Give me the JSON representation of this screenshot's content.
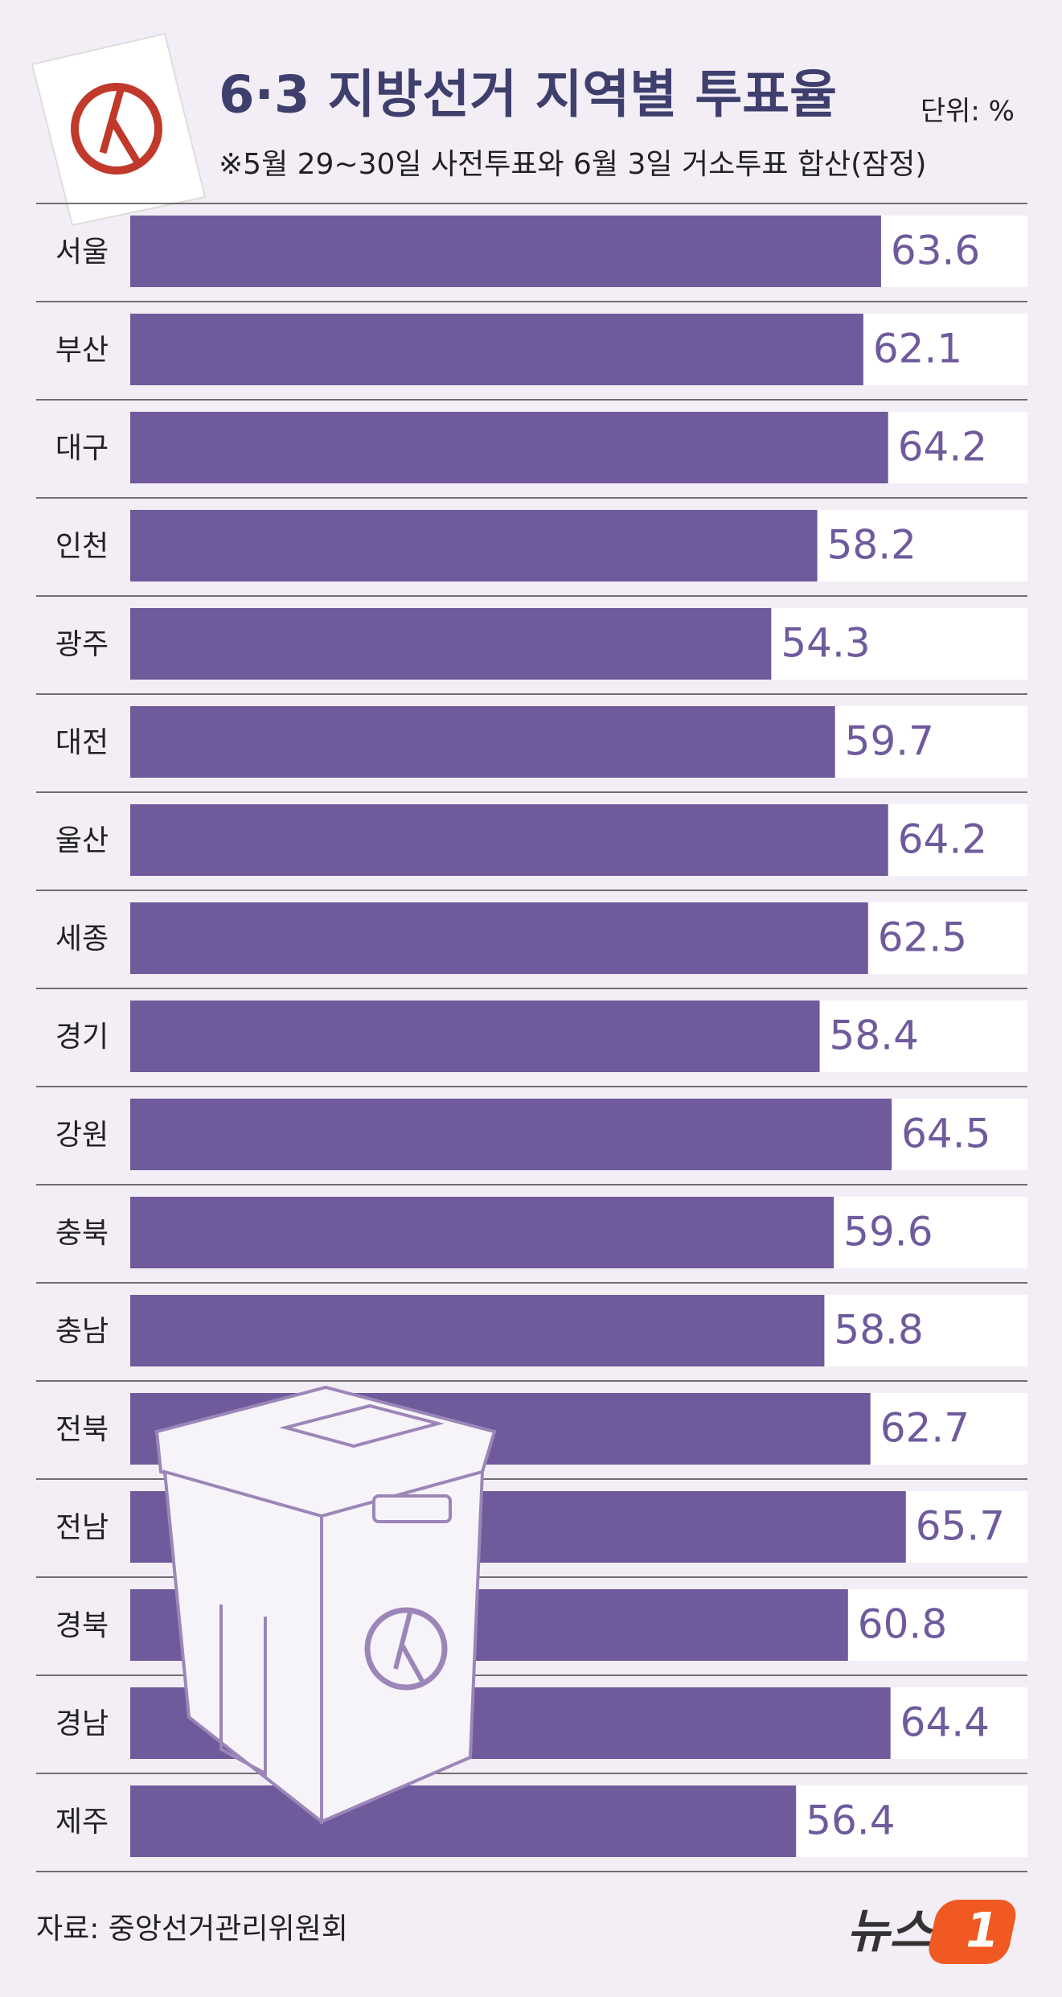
{
  "chart_data": {
    "type": "bar",
    "orientation": "horizontal",
    "title": "6·3 지방선거 지역별 투표율",
    "unit": "단위: %",
    "subtitle": "※5월 29~30일 사전투표와 6월 3일 거소투표 합산(잠정)",
    "source": "자료: 중앙선거관리위원회",
    "logo": {
      "text": "뉴스",
      "mark": "1"
    },
    "categories": [
      "서울",
      "부산",
      "대구",
      "인천",
      "광주",
      "대전",
      "울산",
      "세종",
      "경기",
      "강원",
      "충북",
      "충남",
      "전북",
      "전남",
      "경북",
      "경남",
      "제주"
    ],
    "values": [
      63.6,
      62.1,
      64.2,
      58.2,
      54.3,
      59.7,
      64.2,
      62.5,
      58.4,
      64.5,
      59.6,
      58.8,
      62.7,
      65.7,
      60.8,
      64.4,
      56.4
    ],
    "color": "#6f5a9c",
    "xlim": [
      0,
      76
    ]
  }
}
